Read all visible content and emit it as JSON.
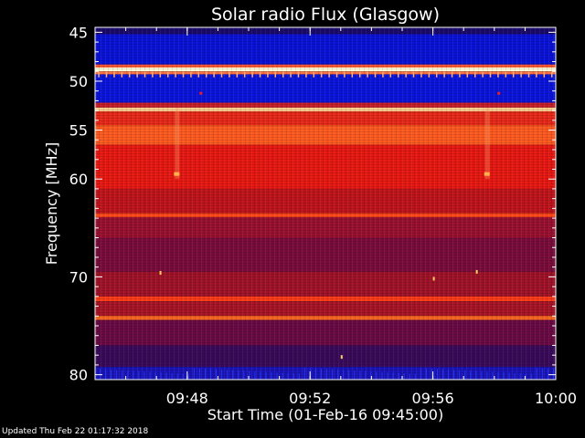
{
  "chart_data": {
    "type": "heatmap",
    "title": "Solar radio Flux (Glasgow)",
    "xlabel": "Start Time (01-Feb-16 09:45:00)",
    "ylabel": "Frequency [MHz]",
    "x_range": [
      "09:45:00",
      "10:00:00"
    ],
    "y_range_mhz": [
      44.5,
      80.5
    ],
    "x_ticks": [
      {
        "label": "09:48",
        "minutes_after_start": 3
      },
      {
        "label": "09:52",
        "minutes_after_start": 7
      },
      {
        "label": "09:56",
        "minutes_after_start": 11
      },
      {
        "label": "10:00",
        "minutes_after_start": 15
      }
    ],
    "y_ticks": [
      {
        "label": "45",
        "mhz": 45
      },
      {
        "label": "50",
        "mhz": 50
      },
      {
        "label": "55",
        "mhz": 55
      },
      {
        "label": "60",
        "mhz": 60
      },
      {
        "label": "70",
        "mhz": 70
      },
      {
        "label": "80",
        "mhz": 80
      }
    ],
    "bands": [
      {
        "from_mhz": 44.5,
        "to_mhz": 45.2,
        "color": "#1a0a6a"
      },
      {
        "from_mhz": 45.2,
        "to_mhz": 48.3,
        "color": "#0a12d8"
      },
      {
        "from_mhz": 48.3,
        "to_mhz": 48.6,
        "color": "#ff5a30"
      },
      {
        "from_mhz": 48.6,
        "to_mhz": 49.0,
        "color": "#ffffd8"
      },
      {
        "from_mhz": 49.0,
        "to_mhz": 49.3,
        "color": "#ff7040"
      },
      {
        "from_mhz": 49.3,
        "to_mhz": 52.2,
        "color": "#0a14dc"
      },
      {
        "from_mhz": 52.2,
        "to_mhz": 52.7,
        "color": "#c82028"
      },
      {
        "from_mhz": 52.7,
        "to_mhz": 53.1,
        "color": "#ffd090"
      },
      {
        "from_mhz": 53.1,
        "to_mhz": 54.5,
        "color": "#e82818"
      },
      {
        "from_mhz": 54.5,
        "to_mhz": 56.5,
        "color": "#ff5a20"
      },
      {
        "from_mhz": 56.5,
        "to_mhz": 61.0,
        "color": "#e81812"
      },
      {
        "from_mhz": 61.0,
        "to_mhz": 63.5,
        "color": "#c0141c"
      },
      {
        "from_mhz": 63.5,
        "to_mhz": 63.9,
        "color": "#ff4818"
      },
      {
        "from_mhz": 63.9,
        "to_mhz": 66.0,
        "color": "#9a1030"
      },
      {
        "from_mhz": 66.0,
        "to_mhz": 69.5,
        "color": "#7a0c3c"
      },
      {
        "from_mhz": 69.5,
        "to_mhz": 72.0,
        "color": "#a01228"
      },
      {
        "from_mhz": 72.0,
        "to_mhz": 72.5,
        "color": "#ff3c18"
      },
      {
        "from_mhz": 72.5,
        "to_mhz": 74.0,
        "color": "#a81426"
      },
      {
        "from_mhz": 74.0,
        "to_mhz": 74.4,
        "color": "#ff6a20"
      },
      {
        "from_mhz": 74.4,
        "to_mhz": 77.0,
        "color": "#6a0a44"
      },
      {
        "from_mhz": 77.0,
        "to_mhz": 79.2,
        "color": "#3a0a5a"
      },
      {
        "from_mhz": 79.2,
        "to_mhz": 80.5,
        "color": "#1a14b8"
      }
    ]
  },
  "footer": "Updated Thu Feb 22 01:17:32 2018"
}
